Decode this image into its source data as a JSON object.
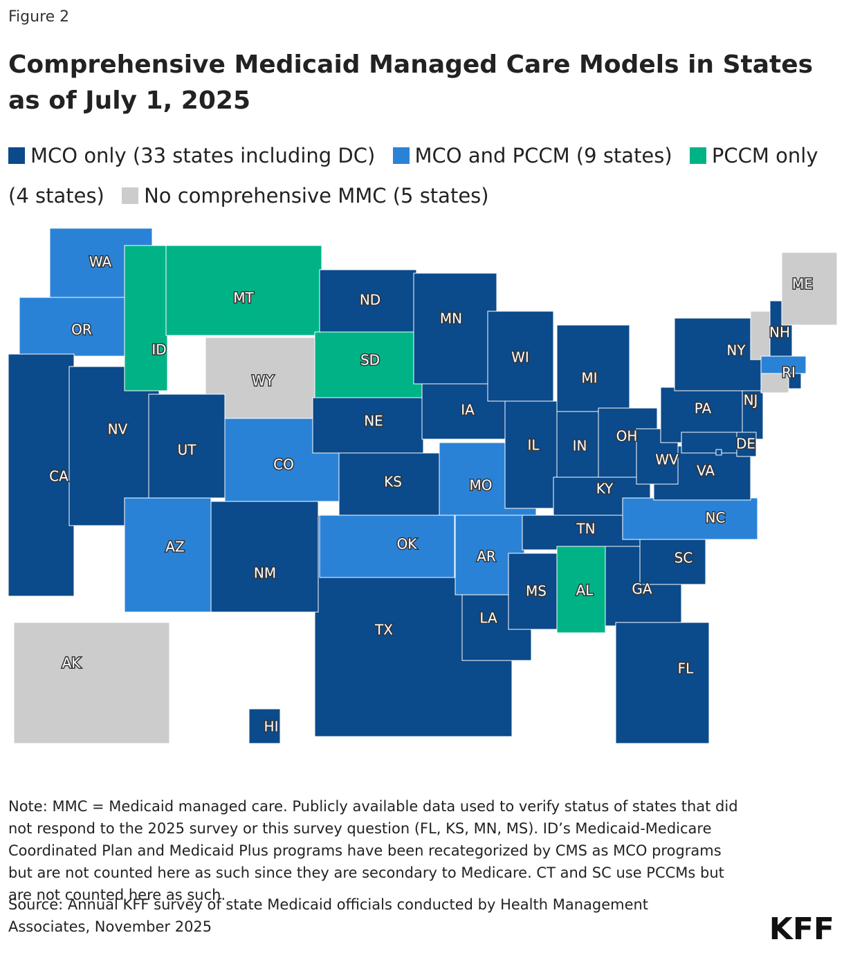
{
  "header": {
    "figure_label": "Figure 2",
    "title": "Comprehensive Medicaid Managed Care Models in States as of July 1, 2025"
  },
  "legend": [
    {
      "name": "MCO only (33 states including DC)",
      "color": "#0b4a8b"
    },
    {
      "name": "MCO and PCCM (9 states)",
      "color": "#2a82d6"
    },
    {
      "name": "PCCM only (4 states)",
      "color": "#00b386"
    },
    {
      "name": "No comprehensive MMC (5 states)",
      "color": "#cccccc"
    }
  ],
  "states": [
    {
      "label": "WA",
      "category": 1
    },
    {
      "label": "OR",
      "category": 1
    },
    {
      "label": "CA",
      "category": 0
    },
    {
      "label": "NV",
      "category": 0
    },
    {
      "label": "ID",
      "category": 2
    },
    {
      "label": "MT",
      "category": 2
    },
    {
      "label": "WY",
      "category": 3
    },
    {
      "label": "UT",
      "category": 0
    },
    {
      "label": "AZ",
      "category": 1
    },
    {
      "label": "TX",
      "category": 0
    },
    {
      "label": "CO",
      "category": 1
    },
    {
      "label": "NM",
      "category": 0
    },
    {
      "label": "ND",
      "category": 0
    },
    {
      "label": "SD",
      "category": 2
    },
    {
      "label": "NE",
      "category": 0
    },
    {
      "label": "KS",
      "category": 0
    },
    {
      "label": "OK",
      "category": 1
    },
    {
      "label": "MN",
      "category": 0
    },
    {
      "label": "IA",
      "category": 0
    },
    {
      "label": "MO",
      "category": 1
    },
    {
      "label": "AR",
      "category": 1
    },
    {
      "label": "LA",
      "category": 0
    },
    {
      "label": "WI",
      "category": 0
    },
    {
      "label": "IL",
      "category": 0
    },
    {
      "label": "MI",
      "category": 0
    },
    {
      "label": "IN",
      "category": 0
    },
    {
      "label": "OH",
      "category": 0
    },
    {
      "label": "KY",
      "category": 0
    },
    {
      "label": "TN",
      "category": 0
    },
    {
      "label": "MS",
      "category": 0
    },
    {
      "label": "AL",
      "category": 2
    },
    {
      "label": "GA",
      "category": 0
    },
    {
      "label": "FL",
      "category": 0
    },
    {
      "label": "SC",
      "category": 0
    },
    {
      "label": "NC",
      "category": 1
    },
    {
      "label": "VA",
      "category": 0
    },
    {
      "label": "WV",
      "category": 0
    },
    {
      "label": "PA",
      "category": 0
    },
    {
      "label": "NY",
      "category": 0
    },
    {
      "label": "NJ",
      "category": 0
    },
    {
      "label": null,
      "category": 0
    },
    {
      "label": "DE",
      "category": 0
    },
    {
      "label": null,
      "category": 0
    },
    {
      "label": null,
      "category": 3
    },
    {
      "label": "NH",
      "category": 0
    },
    {
      "label": "ME",
      "category": 3
    },
    {
      "label": null,
      "category": 1
    },
    {
      "label": null,
      "category": 3
    },
    {
      "label": "RI",
      "category": 0
    },
    {
      "label": "AK",
      "category": 3
    },
    {
      "label": "HI",
      "category": 0
    }
  ],
  "note": "Note: MMC = Medicaid managed care. Publicly available data used to verify status of states that did not respond to the 2025 survey or this survey question (FL, KS, MN, MS). ID’s Medicaid-Medicare Coordinated Plan and Medicaid Plus programs have been recategorized by CMS as MCO programs but are not counted here as such since they are secondary to Medicare. CT and SC use PCCMs but are not counted here as such.",
  "source": "Source: Annual KFF survey of state Medicaid officials conducted by Health Management Associates, November 2025",
  "logo": "KFF"
}
